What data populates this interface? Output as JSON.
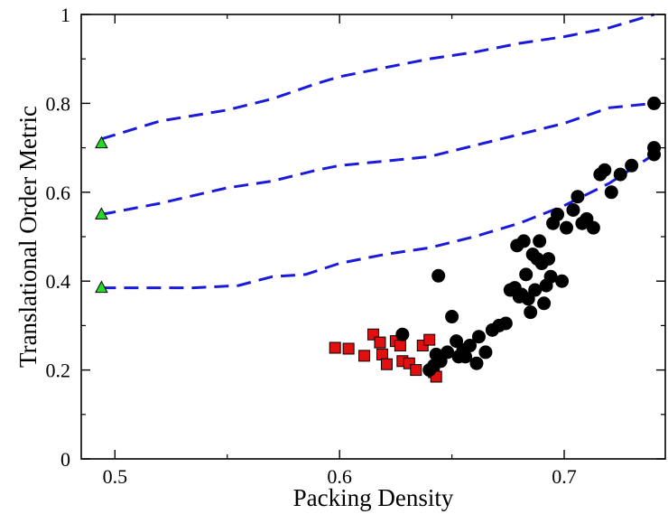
{
  "chart_data": {
    "type": "scatter",
    "xlabel": "Packing Density",
    "ylabel": "Translational Order Metric",
    "xlim": [
      0.485,
      0.745
    ],
    "ylim": [
      0,
      1
    ],
    "xticks": [
      0.5,
      0.6,
      0.7
    ],
    "xtick_labels": [
      "0.5",
      "0.6",
      "0.7"
    ],
    "yticks": [
      0,
      0.2,
      0.4,
      0.6,
      0.8,
      1
    ],
    "ytick_labels": [
      "0",
      "0.2",
      "0.4",
      "0.6",
      "0.8",
      "1"
    ],
    "grid": false,
    "legend": "none",
    "colors": {
      "dashed_lines": "#1a1adb",
      "triangles": "#22dd22",
      "squares": "#e01010",
      "circles": "#000000"
    },
    "series": [
      {
        "marker": "dashed-line",
        "x": [
          0.494,
          0.52,
          0.55,
          0.57,
          0.59,
          0.6,
          0.62,
          0.64,
          0.66,
          0.68,
          0.7,
          0.72,
          0.74
        ],
        "y": [
          0.72,
          0.76,
          0.785,
          0.81,
          0.845,
          0.86,
          0.88,
          0.9,
          0.915,
          0.935,
          0.95,
          0.97,
          1.0
        ]
      },
      {
        "marker": "dashed-line",
        "x": [
          0.494,
          0.52,
          0.55,
          0.57,
          0.59,
          0.6,
          0.62,
          0.64,
          0.66,
          0.68,
          0.7,
          0.72,
          0.74
        ],
        "y": [
          0.55,
          0.575,
          0.61,
          0.625,
          0.65,
          0.66,
          0.67,
          0.68,
          0.705,
          0.73,
          0.755,
          0.79,
          0.8
        ]
      },
      {
        "marker": "dashed-line",
        "x": [
          0.494,
          0.51,
          0.535,
          0.555,
          0.57,
          0.585,
          0.6,
          0.62,
          0.64,
          0.66,
          0.68,
          0.7,
          0.72,
          0.74
        ],
        "y": [
          0.385,
          0.385,
          0.385,
          0.39,
          0.41,
          0.415,
          0.44,
          0.46,
          0.475,
          0.5,
          0.53,
          0.57,
          0.62,
          0.685
        ]
      },
      {
        "marker": "triangle",
        "x": [
          0.494,
          0.494,
          0.494
        ],
        "y": [
          0.71,
          0.55,
          0.385
        ]
      },
      {
        "marker": "square",
        "x": [
          0.598,
          0.604,
          0.611,
          0.615,
          0.618,
          0.619,
          0.621,
          0.625,
          0.627,
          0.628,
          0.631,
          0.634,
          0.637,
          0.64,
          0.642,
          0.643
        ],
        "y": [
          0.25,
          0.248,
          0.232,
          0.28,
          0.262,
          0.235,
          0.213,
          0.265,
          0.255,
          0.22,
          0.215,
          0.2,
          0.255,
          0.268,
          0.195,
          0.185
        ]
      },
      {
        "marker": "circle",
        "x": [
          0.628,
          0.64,
          0.642,
          0.643,
          0.644,
          0.645,
          0.648,
          0.65,
          0.652,
          0.653,
          0.655,
          0.656,
          0.658,
          0.661,
          0.662,
          0.665,
          0.668,
          0.671,
          0.674,
          0.676,
          0.678,
          0.679,
          0.68,
          0.681,
          0.682,
          0.683,
          0.684,
          0.685,
          0.686,
          0.687,
          0.688,
          0.689,
          0.69,
          0.691,
          0.692,
          0.693,
          0.694,
          0.695,
          0.697,
          0.699,
          0.701,
          0.704,
          0.706,
          0.708,
          0.71,
          0.713,
          0.716,
          0.718,
          0.721,
          0.725,
          0.73,
          0.74,
          0.74,
          0.74
        ],
        "y": [
          0.28,
          0.2,
          0.21,
          0.235,
          0.412,
          0.22,
          0.24,
          0.32,
          0.265,
          0.23,
          0.245,
          0.23,
          0.255,
          0.215,
          0.275,
          0.24,
          0.29,
          0.3,
          0.305,
          0.38,
          0.385,
          0.48,
          0.365,
          0.37,
          0.49,
          0.415,
          0.36,
          0.33,
          0.46,
          0.38,
          0.45,
          0.49,
          0.44,
          0.35,
          0.39,
          0.45,
          0.41,
          0.53,
          0.55,
          0.4,
          0.52,
          0.56,
          0.59,
          0.53,
          0.54,
          0.52,
          0.64,
          0.65,
          0.6,
          0.64,
          0.66,
          0.7,
          0.685,
          0.8
        ]
      }
    ]
  }
}
